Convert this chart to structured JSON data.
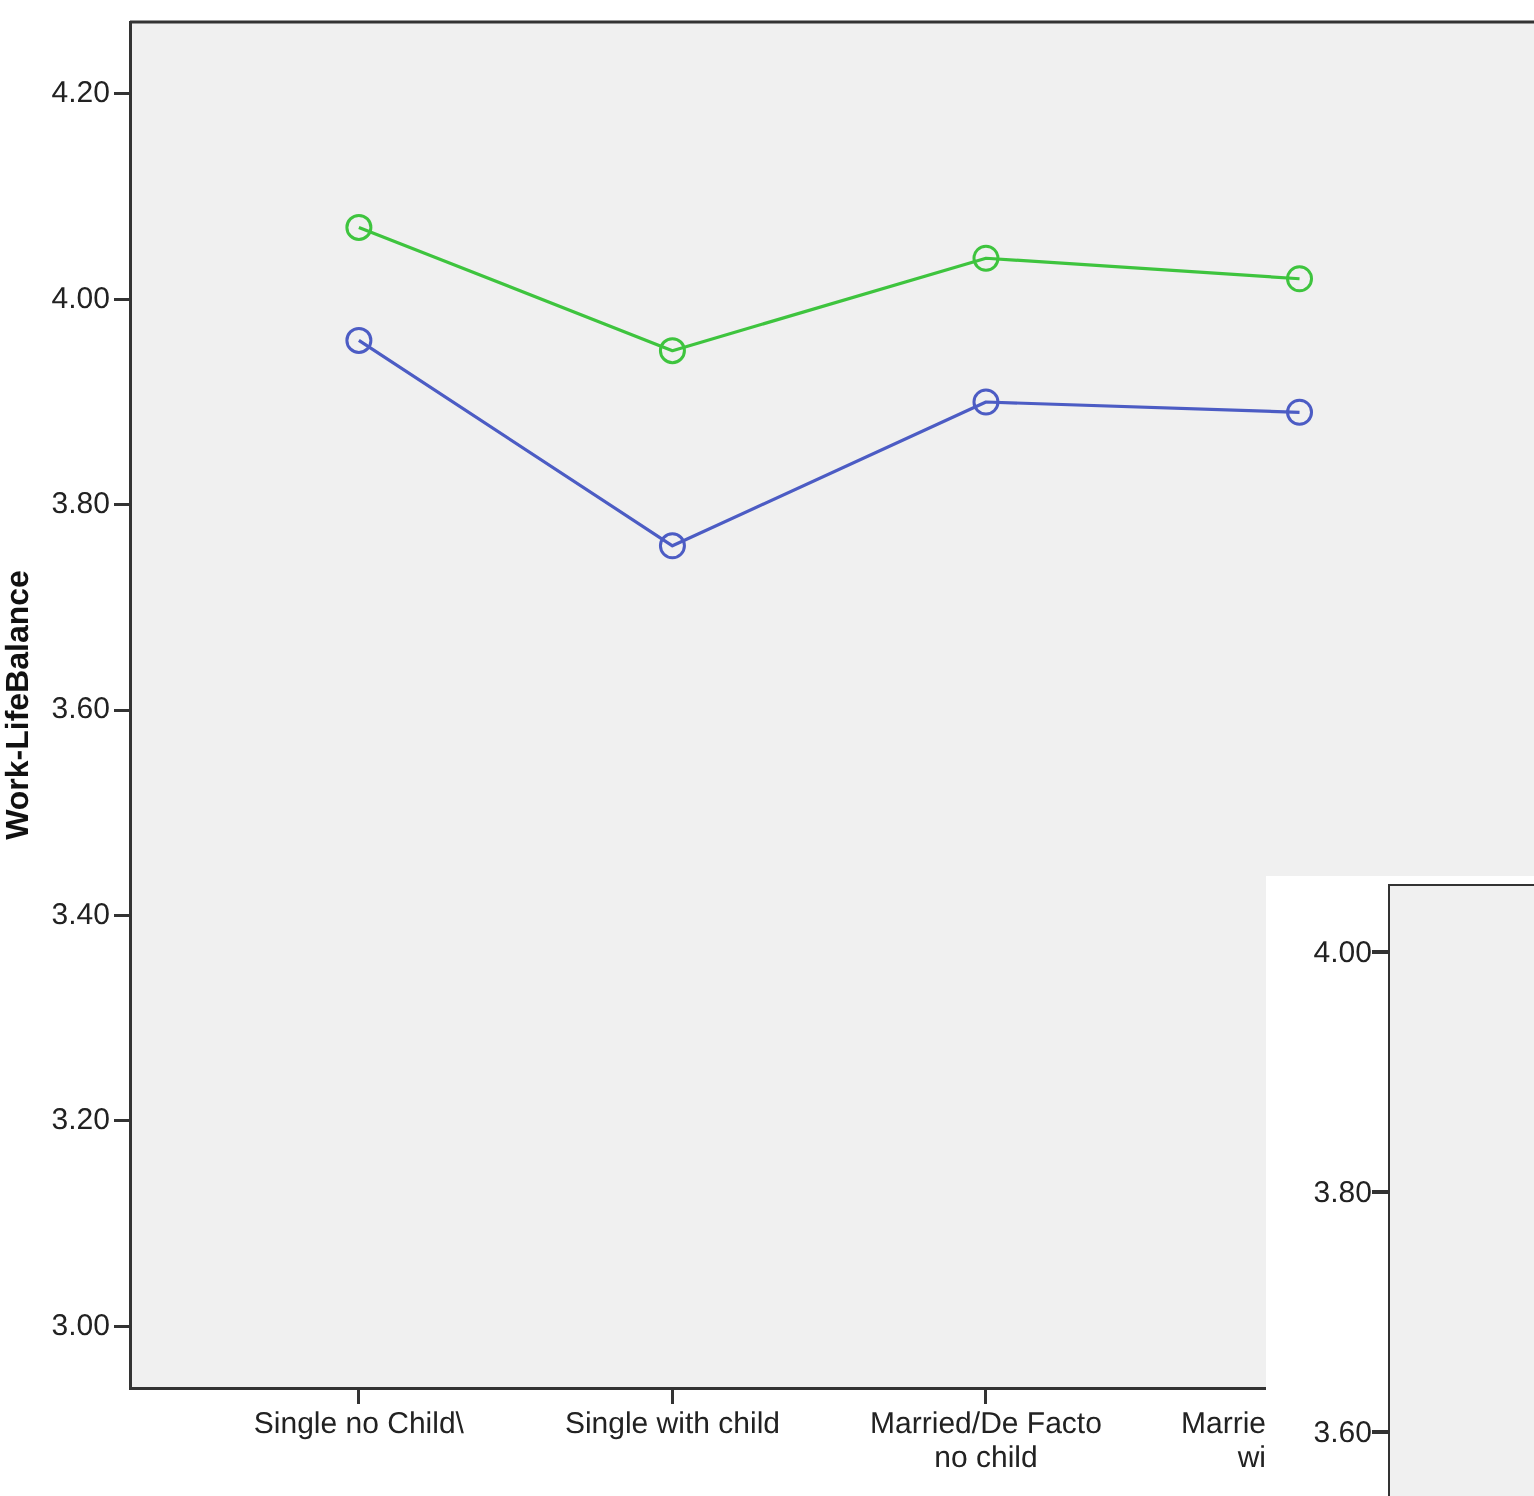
{
  "chart_data": [
    {
      "type": "line",
      "ylabel": "Work-LifeBalance",
      "categories": [
        "Single no Child\\",
        "Single with child",
        "Married/De Facto\nno child",
        "Marrie\nwi"
      ],
      "series": [
        {
          "color": "#3ec43e",
          "values": [
            4.07,
            3.95,
            4.04,
            4.02
          ]
        },
        {
          "color": "#4c5cc4",
          "values": [
            3.96,
            3.76,
            3.9,
            3.89
          ]
        }
      ],
      "ylim": [
        2.94,
        4.27
      ],
      "yticks": [
        {
          "value": 3.0,
          "label": "3.00"
        },
        {
          "value": 3.2,
          "label": "3.20"
        },
        {
          "value": 3.4,
          "label": "3.40"
        },
        {
          "value": 3.6,
          "label": "3.60"
        },
        {
          "value": 3.8,
          "label": "3.80"
        },
        {
          "value": 4.0,
          "label": "4.00"
        },
        {
          "value": 4.2,
          "label": "4.20"
        }
      ],
      "marker": "circle"
    },
    {
      "type": "other",
      "annotations": [
        "4.00",
        "3.80",
        "3.60"
      ]
    }
  ]
}
